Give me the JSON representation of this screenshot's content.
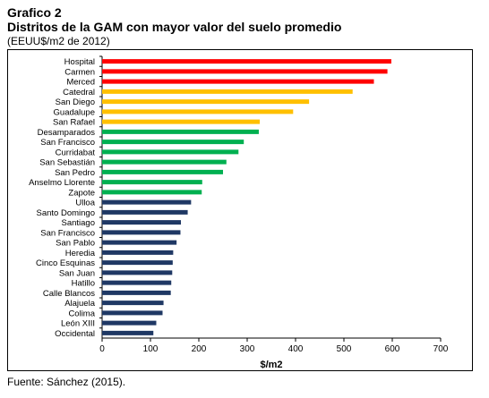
{
  "header": {
    "title": "Grafico 2",
    "subtitle": "Distritos de la GAM con mayor valor del suelo promedio",
    "units": "(EEUU$/m2 de 2012)"
  },
  "footer": {
    "source": "Fuente: Sánchez (2015)."
  },
  "colors": {
    "red": "#ff0000",
    "yellow": "#ffc000",
    "green": "#00b050",
    "navy": "#1f3864"
  },
  "chart_data": {
    "type": "bar",
    "orientation": "horizontal",
    "title": "Distritos de la GAM con mayor valor del suelo promedio",
    "xlabel": "$/m2",
    "ylabel": "",
    "xlim": [
      0,
      700
    ],
    "xticks": [
      0,
      100,
      200,
      300,
      400,
      500,
      600,
      700
    ],
    "grid": false,
    "legend": "none",
    "categories": [
      "Hospital",
      "Carmen",
      "Merced",
      "Catedral",
      "San Diego",
      "Guadalupe",
      "San Rafael",
      "Desamparados",
      "San Francisco",
      "Curridabat",
      "San Sebastián",
      "San Pedro",
      "Anselmo Llorente",
      "Zapote",
      "Ulloa",
      "Santo Domingo",
      "Santiago",
      "San Francisco",
      "San Pablo",
      "Heredia",
      "Cinco Esquinas",
      "San Juan",
      "Hatillo",
      "Calle Blancos",
      "Alajuela",
      "Colima",
      "León XIII",
      "Occidental"
    ],
    "values": [
      598,
      590,
      562,
      518,
      428,
      395,
      326,
      324,
      293,
      282,
      257,
      250,
      207,
      206,
      184,
      177,
      163,
      162,
      154,
      147,
      146,
      145,
      143,
      142,
      127,
      125,
      112,
      106
    ],
    "bar_colors": [
      "red",
      "red",
      "red",
      "yellow",
      "yellow",
      "yellow",
      "yellow",
      "green",
      "green",
      "green",
      "green",
      "green",
      "green",
      "green",
      "navy",
      "navy",
      "navy",
      "navy",
      "navy",
      "navy",
      "navy",
      "navy",
      "navy",
      "navy",
      "navy",
      "navy",
      "navy",
      "navy"
    ]
  }
}
